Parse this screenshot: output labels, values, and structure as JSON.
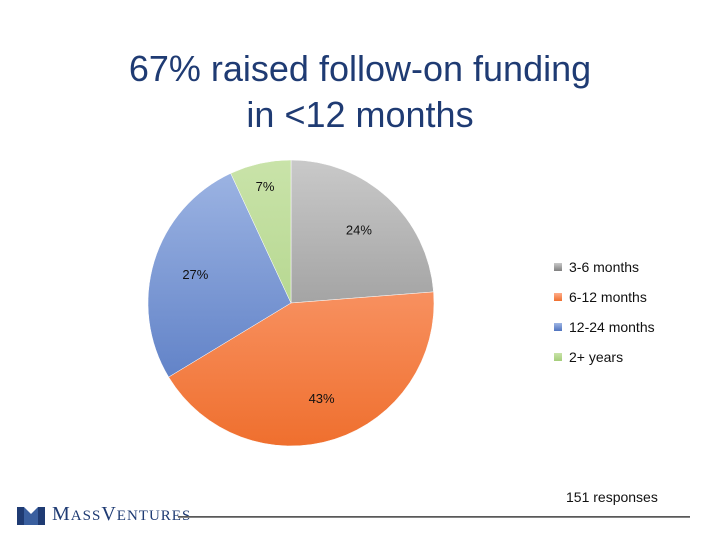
{
  "slide": {
    "title_line1": "67% raised follow-on funding",
    "title_line2": "in <12 months",
    "footnote": "151 responses"
  },
  "logo": {
    "m_initial": "M",
    "m_rest": "ASS",
    "v_initial": "V",
    "v_rest": "ENTURES"
  },
  "chart_data": {
    "type": "pie",
    "title": "",
    "categories": [
      "3-6 months",
      "6-12 months",
      "12-24 months",
      "2+ years"
    ],
    "values": [
      24,
      43,
      27,
      7
    ],
    "value_labels": [
      "24%",
      "43%",
      "27%",
      "7%"
    ],
    "colors": [
      "#7f7f7f",
      "#ef6f2e",
      "#4f73bf",
      "#a5cd7a"
    ],
    "colors_light": [
      "#c9c9c9",
      "#ffad8a",
      "#9fb6e4",
      "#c9e3a9"
    ],
    "legend_position": "right",
    "start": "12 o'clock, clockwise"
  }
}
